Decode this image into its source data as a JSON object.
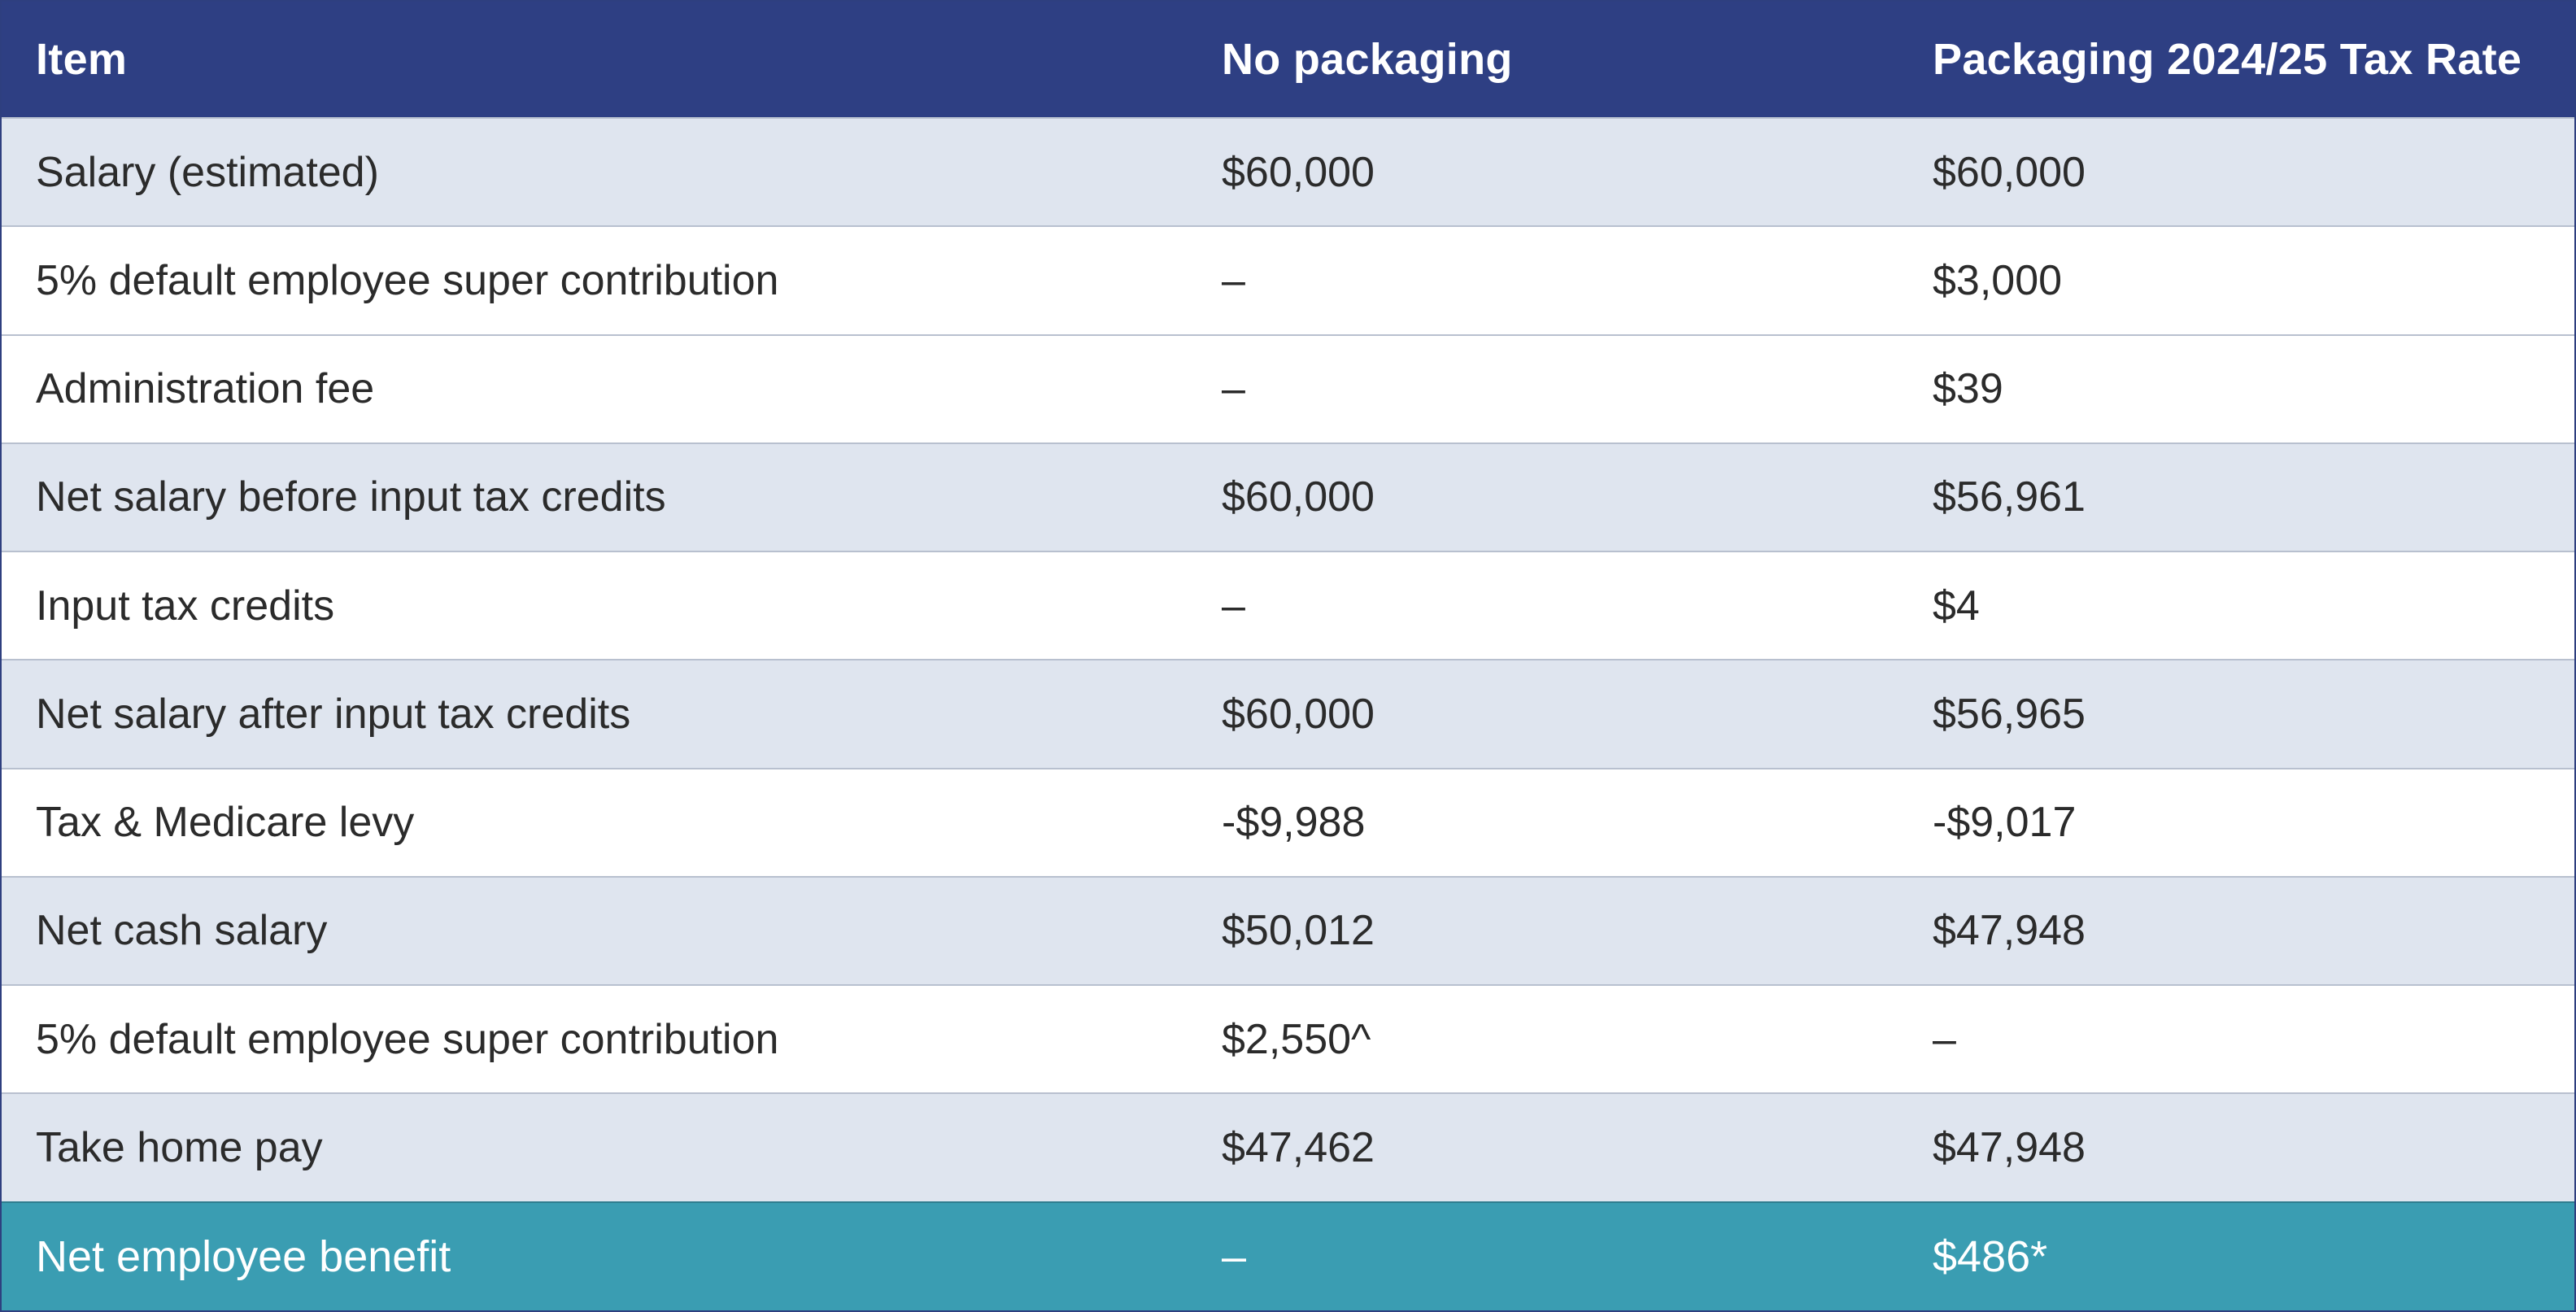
{
  "table": {
    "headers": [
      "Item",
      "No packaging",
      "Packaging 2024/25 Tax Rate"
    ],
    "rows": [
      {
        "item": "Salary (estimated)",
        "no_packaging": "$60,000",
        "packaging": "$60,000"
      },
      {
        "item": "5% default employee super contribution",
        "no_packaging": "–",
        "packaging": "$3,000"
      },
      {
        "item": "Administration fee",
        "no_packaging": "–",
        "packaging": "$39"
      },
      {
        "item": "Net salary before input tax credits",
        "no_packaging": "$60,000",
        "packaging": "$56,961"
      },
      {
        "item": "Input tax credits",
        "no_packaging": "–",
        "packaging": "$4"
      },
      {
        "item": "Net salary after input tax credits",
        "no_packaging": "$60,000",
        "packaging": "$56,965"
      },
      {
        "item": "Tax & Medicare levy",
        "no_packaging": "-$9,988",
        "packaging": "-$9,017"
      },
      {
        "item": "Net cash salary",
        "no_packaging": "$50,012",
        "packaging": "$47,948"
      },
      {
        "item": "5% default employee super contribution",
        "no_packaging": "$2,550^",
        "packaging": "–"
      },
      {
        "item": "Take home pay",
        "no_packaging": "$47,462",
        "packaging": "$47,948"
      }
    ],
    "total": {
      "item": "Net employee benefit",
      "no_packaging": "–",
      "packaging": "$486*"
    }
  },
  "colors": {
    "header_bg": "#2e3f83",
    "shaded_row_bg": "#dfe5ef",
    "total_row_bg": "#3a9db2"
  }
}
